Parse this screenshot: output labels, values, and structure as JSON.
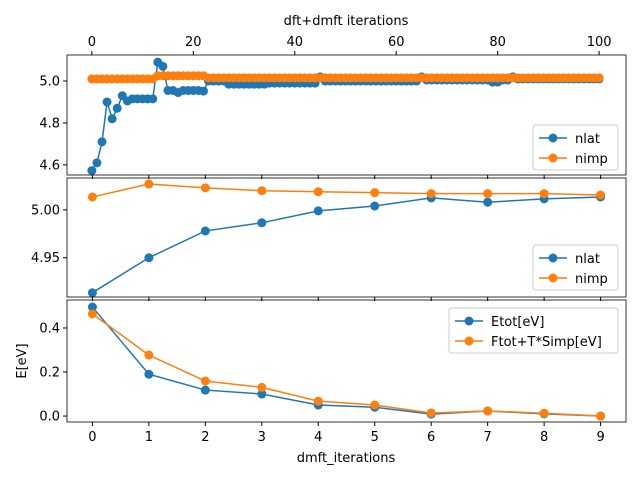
{
  "chart_data": [
    {
      "type": "line",
      "title": "",
      "top_xlabel": "dft+dmft iterations",
      "ylabel": "",
      "xlim": [
        -4.9,
        105.3
      ],
      "ylim": [
        4.552,
        5.124
      ],
      "top_xticks": [
        "0",
        "20",
        "40",
        "60",
        "80",
        "100"
      ],
      "yticks": [
        "4.6",
        "4.8",
        "5.0"
      ],
      "x_is_index": true,
      "legend": "lower-right",
      "series": [
        {
          "name": "nlat",
          "color": "#1f77b4",
          "values": [
            4.573,
            4.61,
            4.71,
            4.9,
            4.82,
            4.87,
            4.93,
            4.905,
            4.915,
            4.915,
            4.915,
            4.915,
            4.915,
            5.09,
            5.07,
            4.955,
            4.955,
            4.945,
            4.955,
            4.955,
            4.955,
            4.955,
            4.952,
            5.0,
            5.0,
            5.0,
            5.0,
            4.985,
            4.985,
            4.985,
            4.985,
            4.985,
            4.985,
            4.985,
            4.985,
            4.99,
            4.99,
            4.99,
            4.99,
            4.99,
            4.99,
            4.99,
            4.99,
            4.99,
            4.99,
            5.02,
            5.0,
            5.0,
            5.0,
            5.0,
            5.0,
            5.0,
            5.0,
            5.0,
            5.0,
            5.0,
            5.0,
            5.0,
            5.0,
            5.0,
            5.0,
            5.0,
            5.0,
            5.0,
            5.0,
            5.02,
            5.005,
            5.005,
            5.005,
            5.005,
            5.005,
            5.005,
            5.005,
            5.005,
            5.005,
            5.005,
            5.005,
            5.005,
            5.005,
            4.995,
            4.995,
            5.005,
            5.005,
            5.02,
            5.01,
            5.01,
            5.01,
            5.01,
            5.01,
            5.01,
            5.01,
            5.01,
            5.01,
            5.01,
            5.01,
            5.01,
            5.01,
            5.01,
            5.01,
            5.01,
            5.01
          ]
        },
        {
          "name": "nimp",
          "color": "#ff7f0e",
          "values": [
            5.01,
            5.01,
            5.01,
            5.01,
            5.01,
            5.01,
            5.01,
            5.01,
            5.01,
            5.01,
            5.01,
            5.01,
            5.01,
            5.025,
            5.025,
            5.025,
            5.025,
            5.025,
            5.025,
            5.025,
            5.025,
            5.025,
            5.025,
            5.015,
            5.015,
            5.015,
            5.015,
            5.015,
            5.015,
            5.015,
            5.015,
            5.015,
            5.015,
            5.015,
            5.015,
            5.015,
            5.015,
            5.015,
            5.015,
            5.015,
            5.015,
            5.015,
            5.015,
            5.015,
            5.015,
            5.015,
            5.015,
            5.015,
            5.015,
            5.015,
            5.015,
            5.015,
            5.015,
            5.015,
            5.015,
            5.015,
            5.015,
            5.015,
            5.015,
            5.015,
            5.015,
            5.015,
            5.015,
            5.015,
            5.015,
            5.015,
            5.015,
            5.015,
            5.015,
            5.015,
            5.015,
            5.015,
            5.015,
            5.015,
            5.015,
            5.015,
            5.015,
            5.015,
            5.015,
            5.015,
            5.015,
            5.015,
            5.015,
            5.015,
            5.015,
            5.015,
            5.015,
            5.015,
            5.015,
            5.015,
            5.015,
            5.015,
            5.015,
            5.015,
            5.015,
            5.015,
            5.015,
            5.015,
            5.015,
            5.015,
            5.015
          ]
        }
      ]
    },
    {
      "type": "line",
      "xlim": [
        -0.45,
        9.45
      ],
      "ylim": [
        4.909,
        5.0333
      ],
      "yticks": [
        "4.95",
        "5.00"
      ],
      "legend": "lower-right",
      "series": [
        {
          "name": "nlat",
          "color": "#1f77b4",
          "values": [
            4.9135,
            4.95,
            4.978,
            4.9865,
            4.999,
            5.004,
            5.0125,
            5.008,
            5.0115,
            5.0135
          ]
        },
        {
          "name": "nimp",
          "color": "#ff7f0e",
          "values": [
            5.0135,
            5.027,
            5.023,
            5.02,
            5.019,
            5.018,
            5.017,
            5.017,
            5.017,
            5.0155
          ]
        }
      ]
    },
    {
      "type": "line",
      "xlabel": "dmft_iterations",
      "ylabel": "E[eV]",
      "xlim": [
        -0.45,
        9.45
      ],
      "ylim": [
        -0.027,
        0.527
      ],
      "xticks": [
        "0",
        "1",
        "2",
        "3",
        "4",
        "5",
        "6",
        "7",
        "8",
        "9"
      ],
      "yticks": [
        "0.0",
        "0.2",
        "0.4"
      ],
      "legend": "upper-right",
      "series": [
        {
          "name": "Etot[eV]",
          "color": "#1f77b4",
          "values": [
            0.495,
            0.19,
            0.118,
            0.1,
            0.05,
            0.04,
            0.009,
            0.023,
            0.01,
            0.0
          ]
        },
        {
          "name": "Ftot+T*Simp[eV]",
          "color": "#ff7f0e",
          "values": [
            0.464,
            0.277,
            0.159,
            0.13,
            0.068,
            0.05,
            0.014,
            0.023,
            0.013,
            0.0
          ]
        }
      ]
    }
  ]
}
